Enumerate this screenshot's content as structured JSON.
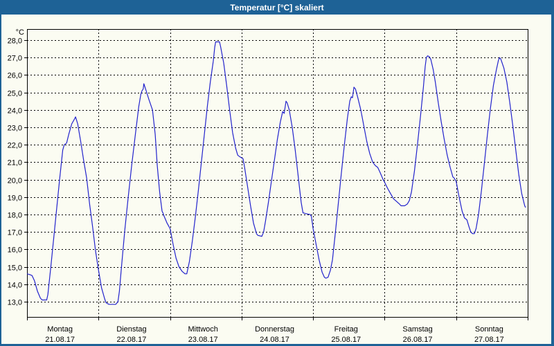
{
  "window": {
    "title": "Temperatur [°C] skaliert"
  },
  "colors": {
    "titlebar": "#1e6296",
    "background": "#fbfcf2",
    "grid": "#000000",
    "axis": "#000000",
    "line": "#2222cc"
  },
  "chart_data": {
    "type": "line",
    "title": "Temperatur [°C] skaliert",
    "ylabel": "°C",
    "y_axis": {
      "min": 13,
      "max": 28,
      "step": 1,
      "tick_labels": [
        "28,0",
        "27,0",
        "26,0",
        "25,0",
        "24,0",
        "23,0",
        "22,0",
        "21,0",
        "20,0",
        "19,0",
        "18,0",
        "17,0",
        "16,0",
        "15,0",
        "14,0",
        "13,0"
      ]
    },
    "x_axis": {
      "hours_per_day": 24,
      "days": [
        {
          "name": "Montag",
          "date": "21.08.17"
        },
        {
          "name": "Dienstag",
          "date": "22.08.17"
        },
        {
          "name": "Mittwoch",
          "date": "23.08.17"
        },
        {
          "name": "Donnerstag",
          "date": "24.08.17"
        },
        {
          "name": "Freitag",
          "date": "25.08.17"
        },
        {
          "name": "Samstag",
          "date": "26.08.17"
        },
        {
          "name": "Sonntag",
          "date": "27.08.17"
        }
      ]
    },
    "grid": {
      "style": "dashed",
      "horizontal": "every-degree",
      "vertical": "day-boundaries"
    },
    "legend": "none",
    "series": [
      {
        "name": "Temperatur",
        "unit": "°C",
        "color": "#2222cc",
        "points": [
          [
            0,
            14.6
          ],
          [
            1,
            14.55
          ],
          [
            1.7,
            14.5
          ],
          [
            2.5,
            14.2
          ],
          [
            3.5,
            13.6
          ],
          [
            4.5,
            13.2
          ],
          [
            5.1,
            13.1
          ],
          [
            6.6,
            13.1
          ],
          [
            7,
            13.4
          ],
          [
            8,
            15.0
          ],
          [
            9,
            16.7
          ],
          [
            10,
            18.4
          ],
          [
            11,
            20.1
          ],
          [
            12,
            21.7
          ],
          [
            12.5,
            22.0
          ],
          [
            13.3,
            22.1
          ],
          [
            14,
            22.6
          ],
          [
            15,
            23.2
          ],
          [
            16,
            23.5
          ],
          [
            16.3,
            23.6
          ],
          [
            17,
            23.2
          ],
          [
            18,
            22.2
          ],
          [
            19,
            21.1
          ],
          [
            20,
            20.1
          ],
          [
            21,
            18.6
          ],
          [
            22,
            17.3
          ],
          [
            23,
            15.9
          ],
          [
            24,
            14.8
          ],
          [
            25,
            13.8
          ],
          [
            26,
            13.2
          ],
          [
            26.5,
            12.95
          ],
          [
            27.5,
            12.85
          ],
          [
            29.8,
            12.85
          ],
          [
            30.5,
            13.0
          ],
          [
            31,
            13.6
          ],
          [
            31.6,
            14.8
          ],
          [
            32.8,
            17.1
          ],
          [
            33.9,
            18.9
          ],
          [
            35.1,
            20.8
          ],
          [
            36.3,
            22.5
          ],
          [
            37.5,
            24.2
          ],
          [
            38.2,
            24.9
          ],
          [
            38.6,
            25.1
          ],
          [
            39,
            25.2
          ],
          [
            39.2,
            25.5
          ],
          [
            39.6,
            25.3
          ],
          [
            40.9,
            24.6
          ],
          [
            42.1,
            24.0
          ],
          [
            43,
            22.6
          ],
          [
            43.7,
            20.8
          ],
          [
            44.5,
            19.3
          ],
          [
            45.3,
            18.2
          ],
          [
            45.6,
            18.1
          ],
          [
            46,
            17.9
          ],
          [
            47,
            17.5
          ],
          [
            48,
            17.2
          ],
          [
            49,
            16.3
          ],
          [
            50,
            15.5
          ],
          [
            51,
            15.0
          ],
          [
            52,
            14.75
          ],
          [
            53,
            14.6
          ],
          [
            53.6,
            14.6
          ],
          [
            54.5,
            15.3
          ],
          [
            55.5,
            16.5
          ],
          [
            56.5,
            17.9
          ],
          [
            57.5,
            19.4
          ],
          [
            58.5,
            21.0
          ],
          [
            59.5,
            22.6
          ],
          [
            60.5,
            24.2
          ],
          [
            61.5,
            25.6
          ],
          [
            62.5,
            26.8
          ],
          [
            63,
            27.6
          ],
          [
            63.3,
            27.9
          ],
          [
            64.6,
            27.9
          ],
          [
            65,
            27.6
          ],
          [
            66,
            26.7
          ],
          [
            67,
            25.4
          ],
          [
            68,
            24.0
          ],
          [
            69,
            22.7
          ],
          [
            70,
            21.8
          ],
          [
            70.7,
            21.4
          ],
          [
            71.5,
            21.3
          ],
          [
            72.5,
            21.2
          ],
          [
            73,
            20.7
          ],
          [
            74,
            19.6
          ],
          [
            75,
            18.5
          ],
          [
            76,
            17.5
          ],
          [
            77,
            16.9
          ],
          [
            77.5,
            16.8
          ],
          [
            78.8,
            16.75
          ],
          [
            79.4,
            17.0
          ],
          [
            80,
            17.6
          ],
          [
            81,
            18.7
          ],
          [
            82,
            19.9
          ],
          [
            83,
            21.1
          ],
          [
            84,
            22.3
          ],
          [
            85,
            23.3
          ],
          [
            85.8,
            23.9
          ],
          [
            86.3,
            23.8
          ],
          [
            86.9,
            24.5
          ],
          [
            87.3,
            24.4
          ],
          [
            88,
            24.0
          ],
          [
            89,
            23.0
          ],
          [
            90,
            21.7
          ],
          [
            91,
            20.2
          ],
          [
            92,
            18.7
          ],
          [
            92.6,
            18.1
          ],
          [
            93.5,
            18.05
          ],
          [
            95,
            18.0
          ],
          [
            95.4,
            17.9
          ],
          [
            96,
            17.2
          ],
          [
            97,
            16.3
          ],
          [
            98,
            15.4
          ],
          [
            99,
            14.7
          ],
          [
            99.8,
            14.4
          ],
          [
            100.3,
            14.35
          ],
          [
            101,
            14.4
          ],
          [
            101.8,
            14.8
          ],
          [
            102.5,
            15.4
          ],
          [
            103.5,
            17.0
          ],
          [
            104.5,
            18.7
          ],
          [
            105.5,
            20.4
          ],
          [
            106.5,
            22.0
          ],
          [
            107.5,
            23.5
          ],
          [
            108.3,
            24.5
          ],
          [
            108.8,
            24.75
          ],
          [
            109.2,
            24.7
          ],
          [
            109.7,
            25.3
          ],
          [
            110.2,
            25.2
          ],
          [
            111,
            24.7
          ],
          [
            112,
            24.0
          ],
          [
            113,
            23.1
          ],
          [
            114,
            22.2
          ],
          [
            115,
            21.5
          ],
          [
            116,
            21.0
          ],
          [
            116.9,
            20.8
          ],
          [
            117.7,
            20.7
          ],
          [
            118.5,
            20.4
          ],
          [
            119.5,
            20.0
          ],
          [
            120,
            19.85
          ],
          [
            121,
            19.5
          ],
          [
            122,
            19.2
          ],
          [
            123,
            18.9
          ],
          [
            124,
            18.75
          ],
          [
            125,
            18.6
          ],
          [
            125.5,
            18.5
          ],
          [
            126.7,
            18.5
          ],
          [
            127.6,
            18.6
          ],
          [
            128.3,
            18.8
          ],
          [
            129,
            19.3
          ],
          [
            130,
            20.5
          ],
          [
            131,
            22.0
          ],
          [
            132,
            23.6
          ],
          [
            133,
            25.3
          ],
          [
            133.6,
            26.5
          ],
          [
            134,
            27.0
          ],
          [
            134.4,
            27.1
          ],
          [
            135,
            27.05
          ],
          [
            135.5,
            26.9
          ],
          [
            136.3,
            26.3
          ],
          [
            137,
            25.6
          ],
          [
            138,
            24.4
          ],
          [
            139,
            23.3
          ],
          [
            140,
            22.3
          ],
          [
            141,
            21.4
          ],
          [
            142,
            20.7
          ],
          [
            142.9,
            20.15
          ],
          [
            143.3,
            20.1
          ],
          [
            144,
            19.9
          ],
          [
            145,
            19.0
          ],
          [
            146,
            18.2
          ],
          [
            146.8,
            17.8
          ],
          [
            147.6,
            17.7
          ],
          [
            148.3,
            17.3
          ],
          [
            148.9,
            17.0
          ],
          [
            149.5,
            16.9
          ],
          [
            150.1,
            16.9
          ],
          [
            150.7,
            17.2
          ],
          [
            151.5,
            18.0
          ],
          [
            152.5,
            19.4
          ],
          [
            153.5,
            21.0
          ],
          [
            154.5,
            22.6
          ],
          [
            155.5,
            24.1
          ],
          [
            156.5,
            25.4
          ],
          [
            157.5,
            26.3
          ],
          [
            158.2,
            26.85
          ],
          [
            158.6,
            27.0
          ],
          [
            159,
            26.9
          ],
          [
            160,
            26.4
          ],
          [
            161,
            25.6
          ],
          [
            162,
            24.4
          ],
          [
            163,
            23.1
          ],
          [
            164,
            21.7
          ],
          [
            165,
            20.3
          ],
          [
            166,
            19.2
          ],
          [
            167,
            18.5
          ],
          [
            167.3,
            18.4
          ]
        ]
      }
    ]
  }
}
